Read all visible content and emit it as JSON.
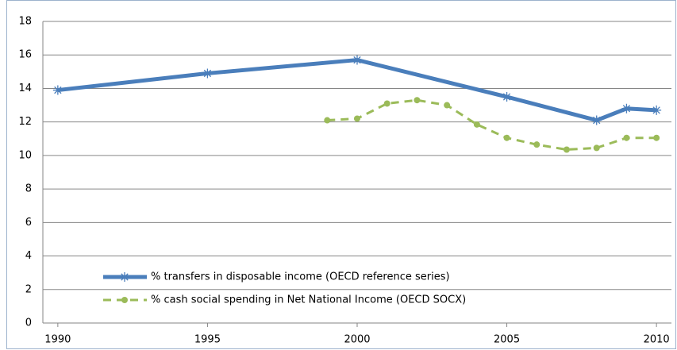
{
  "chart_data": {
    "type": "line",
    "series": [
      {
        "name": "% transfers in disposable income (OECD reference series)",
        "color": "#4a7ebb",
        "marker": "star",
        "dashed": false,
        "x": [
          1990,
          1995,
          2000,
          2005,
          2008,
          2009,
          2010
        ],
        "values": [
          13.9,
          14.9,
          15.7,
          13.5,
          12.1,
          12.8,
          12.7
        ]
      },
      {
        "name": "% cash social spending in Net National Income (OECD SOCX)",
        "color": "#9bbb59",
        "marker": "circle",
        "dashed": true,
        "x": [
          1999,
          2000,
          2001,
          2002,
          2003,
          2004,
          2005,
          2006,
          2007,
          2008,
          2009,
          2010
        ],
        "values": [
          12.1,
          12.2,
          13.1,
          13.3,
          13.0,
          11.85,
          11.05,
          10.65,
          10.35,
          10.45,
          11.05,
          11.05
        ]
      }
    ],
    "xlim": [
      1989.5,
      2010.5
    ],
    "xticks": [
      1990,
      1995,
      2000,
      2005,
      2010
    ],
    "ylim": [
      0,
      18
    ],
    "yticks": [
      0,
      2,
      4,
      6,
      8,
      10,
      12,
      14,
      16,
      18
    ],
    "grid": true
  }
}
